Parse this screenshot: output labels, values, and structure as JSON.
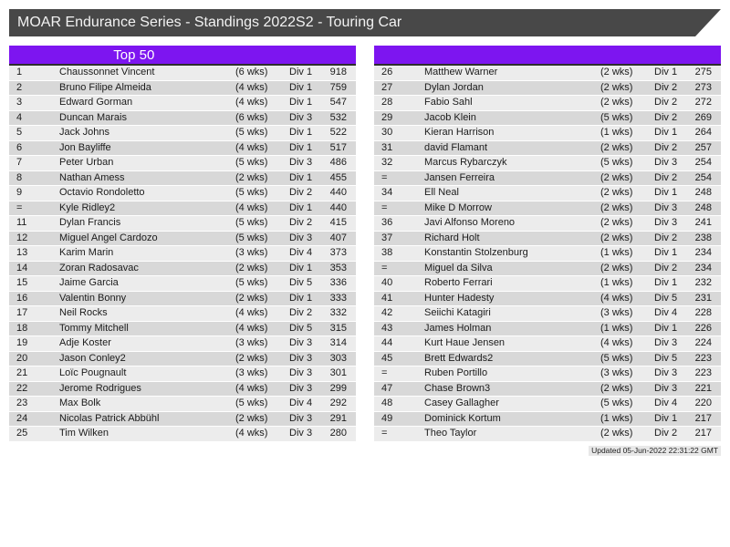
{
  "title_bar": {
    "title": "MOAR Endurance Series - Standings 2022S2 - Touring Car"
  },
  "colors": {
    "title_bar_bg": "#484848",
    "accent_purple": "#7d15f0",
    "row_light": "#ececec",
    "row_dark": "#d8d8d8",
    "header_border": "#2d2d2d"
  },
  "left_table": {
    "header": "Top 50",
    "columns": [
      "position",
      "name",
      "weeks",
      "division",
      "points"
    ],
    "rows": [
      {
        "pos": "1",
        "name": "Chaussonnet Vincent",
        "weeks": "(6 wks)",
        "div": "Div 1",
        "pts": "918"
      },
      {
        "pos": "2",
        "name": "Bruno Filipe Almeida",
        "weeks": "(4 wks)",
        "div": "Div 1",
        "pts": "759"
      },
      {
        "pos": "3",
        "name": "Edward Gorman",
        "weeks": "(4 wks)",
        "div": "Div 1",
        "pts": "547"
      },
      {
        "pos": "4",
        "name": "Duncan Marais",
        "weeks": "(6 wks)",
        "div": "Div 3",
        "pts": "532"
      },
      {
        "pos": "5",
        "name": "Jack Johns",
        "weeks": "(5 wks)",
        "div": "Div 1",
        "pts": "522"
      },
      {
        "pos": "6",
        "name": "Jon Bayliffe",
        "weeks": "(4 wks)",
        "div": "Div 1",
        "pts": "517"
      },
      {
        "pos": "7",
        "name": "Peter Urban",
        "weeks": "(5 wks)",
        "div": "Div 3",
        "pts": "486"
      },
      {
        "pos": "8",
        "name": "Nathan Amess",
        "weeks": "(2 wks)",
        "div": "Div 1",
        "pts": "455"
      },
      {
        "pos": "9",
        "name": "Octavio Rondoletto",
        "weeks": "(5 wks)",
        "div": "Div 2",
        "pts": "440"
      },
      {
        "pos": "=",
        "name": "Kyle Ridley2",
        "weeks": "(4 wks)",
        "div": "Div 1",
        "pts": "440"
      },
      {
        "pos": "11",
        "name": "Dylan Francis",
        "weeks": "(5 wks)",
        "div": "Div 2",
        "pts": "415"
      },
      {
        "pos": "12",
        "name": "Miguel Angel Cardozo",
        "weeks": "(5 wks)",
        "div": "Div 3",
        "pts": "407"
      },
      {
        "pos": "13",
        "name": "Karim Marin",
        "weeks": "(3 wks)",
        "div": "Div 4",
        "pts": "373"
      },
      {
        "pos": "14",
        "name": "Zoran Radosavac",
        "weeks": "(2 wks)",
        "div": "Div 1",
        "pts": "353"
      },
      {
        "pos": "15",
        "name": "Jaime Garcia",
        "weeks": "(5 wks)",
        "div": "Div 5",
        "pts": "336"
      },
      {
        "pos": "16",
        "name": "Valentin Bonny",
        "weeks": "(2 wks)",
        "div": "Div 1",
        "pts": "333"
      },
      {
        "pos": "17",
        "name": "Neil Rocks",
        "weeks": "(4 wks)",
        "div": "Div 2",
        "pts": "332"
      },
      {
        "pos": "18",
        "name": "Tommy Mitchell",
        "weeks": "(4 wks)",
        "div": "Div 5",
        "pts": "315"
      },
      {
        "pos": "19",
        "name": "Adje Koster",
        "weeks": "(3 wks)",
        "div": "Div 3",
        "pts": "314"
      },
      {
        "pos": "20",
        "name": "Jason Conley2",
        "weeks": "(2 wks)",
        "div": "Div 3",
        "pts": "303"
      },
      {
        "pos": "21",
        "name": "Loïc Pougnault",
        "weeks": "(3 wks)",
        "div": "Div 3",
        "pts": "301"
      },
      {
        "pos": "22",
        "name": "Jerome Rodrigues",
        "weeks": "(4 wks)",
        "div": "Div 3",
        "pts": "299"
      },
      {
        "pos": "23",
        "name": "Max Bolk",
        "weeks": "(5 wks)",
        "div": "Div 4",
        "pts": "292"
      },
      {
        "pos": "24",
        "name": "Nicolas Patrick Abbühl",
        "weeks": "(2 wks)",
        "div": "Div 3",
        "pts": "291"
      },
      {
        "pos": "25",
        "name": "Tim Wilken",
        "weeks": "(4 wks)",
        "div": "Div 3",
        "pts": "280"
      }
    ]
  },
  "right_table": {
    "header": "",
    "columns": [
      "position",
      "name",
      "weeks",
      "division",
      "points"
    ],
    "rows": [
      {
        "pos": "26",
        "name": "Matthew Warner",
        "weeks": "(2 wks)",
        "div": "Div 1",
        "pts": "275"
      },
      {
        "pos": "27",
        "name": "Dylan Jordan",
        "weeks": "(2 wks)",
        "div": "Div 2",
        "pts": "273"
      },
      {
        "pos": "28",
        "name": "Fabio Sahl",
        "weeks": "(2 wks)",
        "div": "Div 2",
        "pts": "272"
      },
      {
        "pos": "29",
        "name": "Jacob Klein",
        "weeks": "(5 wks)",
        "div": "Div 2",
        "pts": "269"
      },
      {
        "pos": "30",
        "name": "Kieran Harrison",
        "weeks": "(1 wks)",
        "div": "Div 1",
        "pts": "264"
      },
      {
        "pos": "31",
        "name": "david Flamant",
        "weeks": "(2 wks)",
        "div": "Div 2",
        "pts": "257"
      },
      {
        "pos": "32",
        "name": "Marcus Rybarczyk",
        "weeks": "(5 wks)",
        "div": "Div 3",
        "pts": "254"
      },
      {
        "pos": "=",
        "name": "Jansen Ferreira",
        "weeks": "(2 wks)",
        "div": "Div 2",
        "pts": "254"
      },
      {
        "pos": "34",
        "name": "Ell Neal",
        "weeks": "(2 wks)",
        "div": "Div 1",
        "pts": "248"
      },
      {
        "pos": "=",
        "name": "Mike D Morrow",
        "weeks": "(2 wks)",
        "div": "Div 3",
        "pts": "248"
      },
      {
        "pos": "36",
        "name": "Javi Alfonso Moreno",
        "weeks": "(2 wks)",
        "div": "Div 3",
        "pts": "241"
      },
      {
        "pos": "37",
        "name": "Richard Holt",
        "weeks": "(2 wks)",
        "div": "Div 2",
        "pts": "238"
      },
      {
        "pos": "38",
        "name": "Konstantin Stolzenburg",
        "weeks": "(1 wks)",
        "div": "Div 1",
        "pts": "234"
      },
      {
        "pos": "=",
        "name": "Miguel da Silva",
        "weeks": "(2 wks)",
        "div": "Div 2",
        "pts": "234"
      },
      {
        "pos": "40",
        "name": "Roberto Ferrari",
        "weeks": "(1 wks)",
        "div": "Div 1",
        "pts": "232"
      },
      {
        "pos": "41",
        "name": "Hunter Hadesty",
        "weeks": "(4 wks)",
        "div": "Div 5",
        "pts": "231"
      },
      {
        "pos": "42",
        "name": "Seiichi Katagiri",
        "weeks": "(3 wks)",
        "div": "Div 4",
        "pts": "228"
      },
      {
        "pos": "43",
        "name": "James Holman",
        "weeks": "(1 wks)",
        "div": "Div 1",
        "pts": "226"
      },
      {
        "pos": "44",
        "name": "Kurt Haue Jensen",
        "weeks": "(4 wks)",
        "div": "Div 3",
        "pts": "224"
      },
      {
        "pos": "45",
        "name": "Brett Edwards2",
        "weeks": "(5 wks)",
        "div": "Div 5",
        "pts": "223"
      },
      {
        "pos": "=",
        "name": "Ruben Portillo",
        "weeks": "(3 wks)",
        "div": "Div 3",
        "pts": "223"
      },
      {
        "pos": "47",
        "name": "Chase Brown3",
        "weeks": "(2 wks)",
        "div": "Div 3",
        "pts": "221"
      },
      {
        "pos": "48",
        "name": "Casey Gallagher",
        "weeks": "(5 wks)",
        "div": "Div 4",
        "pts": "220"
      },
      {
        "pos": "49",
        "name": "Dominick Kortum",
        "weeks": "(1 wks)",
        "div": "Div 1",
        "pts": "217"
      },
      {
        "pos": "=",
        "name": "Theo Taylor",
        "weeks": "(2 wks)",
        "div": "Div 2",
        "pts": "217"
      }
    ]
  },
  "footer": {
    "updated": "Updated 05-Jun-2022 22:31:22 GMT"
  }
}
